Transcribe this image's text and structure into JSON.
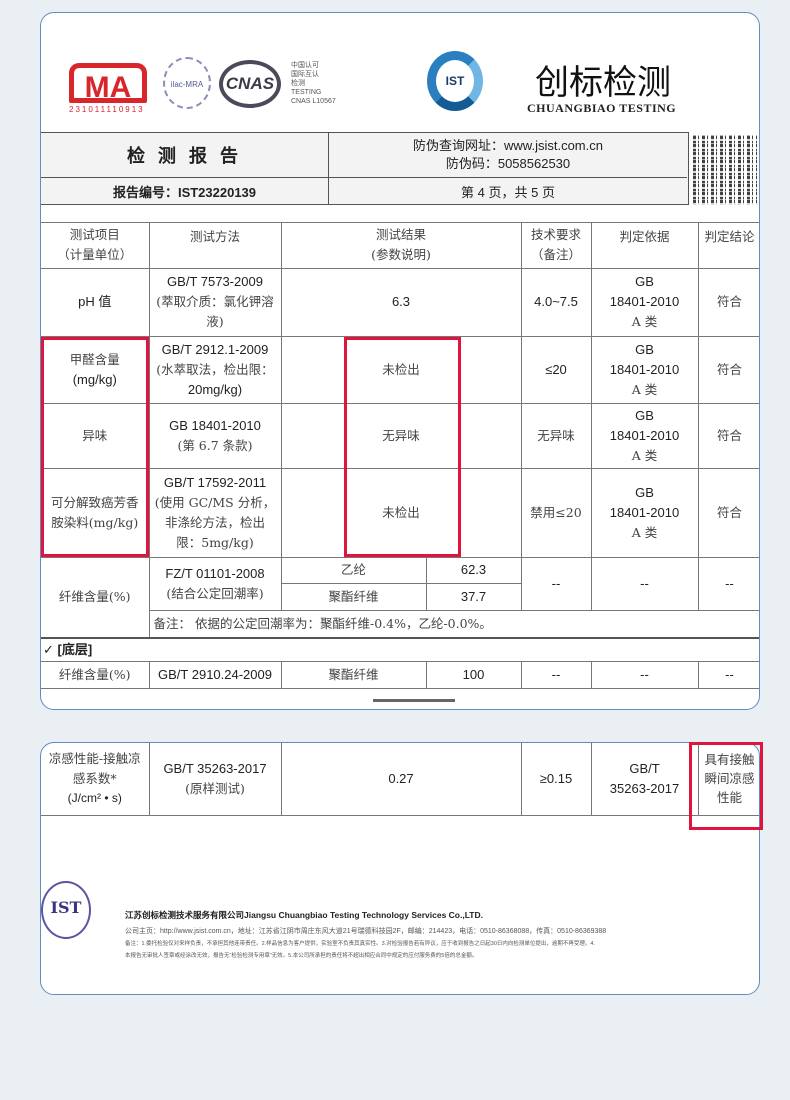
{
  "logos": {
    "cma": "MA",
    "cma_number": "231011110913",
    "ilac": "ilac-MRA",
    "cnas": "CNAS",
    "cnas_text": "中国认可\n国际互认\n检测\nTESTING\nCNAS L10567",
    "ist": "IST",
    "company_cn": "创标检测",
    "company_en": "CHUANGBIAO TESTING"
  },
  "header": {
    "title": "检 测 报 告",
    "verify_url": "防伪查询网址：www.jsist.com.cn",
    "verify_code": "防伪码：5058562530",
    "report_no": "报告编号：IST23220139",
    "page_info": "第 4 页，共 5 页"
  },
  "table": {
    "headers": [
      [
        "测试项目",
        "（计量单位）"
      ],
      [
        "测试方法"
      ],
      [
        "测试结果",
        "(参数说明)"
      ],
      [
        "技术要求",
        "（备注）"
      ],
      [
        "判定依据"
      ],
      [
        "判定结论"
      ]
    ],
    "rows": [
      {
        "item": "pH 值",
        "method": [
          "GB/T 7573-2009",
          "(萃取介质：氯化钾溶",
          "液)"
        ],
        "result": "6.3",
        "req": "4.0~7.5",
        "basis": [
          "GB",
          "18401-2010",
          "A 类"
        ],
        "conclusion": "符合"
      },
      {
        "item": [
          "甲醛含量",
          "(mg/kg)"
        ],
        "method": [
          "GB/T 2912.1-2009",
          "(水萃取法，检出限：",
          "20mg/kg)"
        ],
        "result": "未检出",
        "req": "≤20",
        "basis": [
          "GB",
          "18401-2010",
          "A 类"
        ],
        "conclusion": "符合"
      },
      {
        "item": "异味",
        "method": [
          "GB 18401-2010",
          "(第 6.7 条款)"
        ],
        "result": "无异味",
        "req": "无异味",
        "basis": [
          "GB",
          "18401-2010",
          "A 类"
        ],
        "conclusion": "符合"
      },
      {
        "item": [
          "可分解致癌芳香",
          "胺染料(mg/kg)"
        ],
        "method": [
          "GB/T 17592-2011",
          "(使用 GC/MS 分析，",
          "非涤纶方法，检出",
          "限：5mg/kg)"
        ],
        "result": "未检出",
        "req": "禁用≤20",
        "basis": [
          "GB",
          "18401-2010",
          "A 类"
        ],
        "conclusion": "符合"
      }
    ],
    "fiber": {
      "item": "纤维含量(%)",
      "method": [
        "FZ/T 01101-2008",
        "(结合公定回潮率)"
      ],
      "components": [
        {
          "name": "乙纶",
          "value": "62.3"
        },
        {
          "name": "聚酯纤维",
          "value": "37.7"
        }
      ],
      "req": "--",
      "basis": "--",
      "conclusion": "--",
      "note": "备注：  依据的公定回潮率为：聚酯纤维-0.4%，乙纶-0.0%。"
    },
    "section": "✓   [底层]",
    "fiber2": {
      "item": "纤维含量(%)",
      "method": "GB/T 2910.24-2009",
      "name": "聚酯纤维",
      "value": "100",
      "req": "--",
      "basis": "--",
      "conclusion": "--"
    }
  },
  "page2": {
    "item": [
      "凉感性能-接触凉",
      "感系数*",
      "(J/cm² • s)"
    ],
    "method": [
      "GB/T 35263-2017",
      "(原样测试)"
    ],
    "result": "0.27",
    "req": "≥0.15",
    "basis": [
      "GB/T",
      "35263-2017"
    ],
    "conclusion": [
      "具有接触",
      "瞬间凉感",
      "性能"
    ]
  },
  "footer": {
    "seal": "IST",
    "company": "江苏创标检测技术服务有限公司Jiangsu Chuangbiao Testing Technology Services Co.,LTD.",
    "contact": "公司主页：http://www.jsist.com.cn，地址：江苏省江阴市周庄东风大道21号瑞德科技园2F，邮编：214423，电话：0510-86368088，传真：0510-86369388",
    "note1": "备注：1.委托检验仅对来样负责，不承担其他连带责任。2.样品信息为客户提供，实验室不负责其真实性。3.对检验报告若有异议，应于收到报告之日起30日内向检测单位提出，逾期不再受理。4.",
    "note2": "本报告无审批人签章或经涂改无效，报告无“检验检测专用章”无效。5.本公司所承担的责任将不超出相应合同中规定的应付服务费的5倍的总金额。"
  },
  "colors": {
    "highlight": "#e0143c",
    "card_border": "#5b8fc4",
    "brand_blue": "#2a7fc0",
    "cma_red": "#d9262b"
  }
}
